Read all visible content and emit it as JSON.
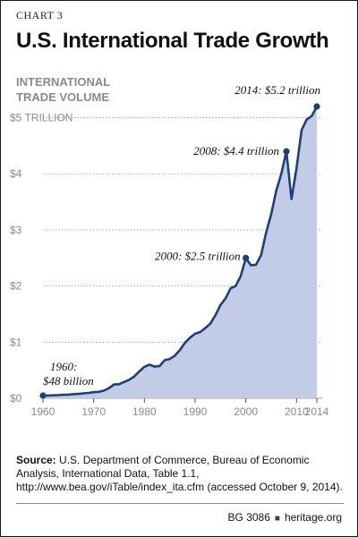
{
  "chart_label": "CHART 3",
  "chart_data": {
    "type": "area",
    "title": "U.S. International Trade Growth",
    "ylabel": "INTERNATIONAL\nTRADE VOLUME",
    "xlabel": "",
    "xlim": [
      1960,
      2014
    ],
    "ylim": [
      0,
      5.2
    ],
    "x_ticks": [
      "1960",
      "1970",
      "1980",
      "1990",
      "2000",
      "2010",
      "2014"
    ],
    "y_ticks": [
      "$0",
      "$1",
      "$2",
      "$3",
      "$4",
      "$5 TRILLION"
    ],
    "units": "trillions of US dollars",
    "series": [
      {
        "x": [
          1960,
          1961,
          1962,
          1963,
          1964,
          1965,
          1966,
          1967,
          1968,
          1969,
          1970,
          1971,
          1972,
          1973,
          1974,
          1975,
          1976,
          1977,
          1978,
          1979,
          1980,
          1981,
          1982,
          1983,
          1984,
          1985,
          1986,
          1987,
          1988,
          1989,
          1990,
          1991,
          1992,
          1993,
          1994,
          1995,
          1996,
          1997,
          1998,
          1999,
          2000,
          2001,
          2002,
          2003,
          2004,
          2005,
          2006,
          2007,
          2008,
          2009,
          2010,
          2011,
          2012,
          2013,
          2014
        ],
        "values": [
          0.048,
          0.05,
          0.053,
          0.056,
          0.062,
          0.066,
          0.074,
          0.078,
          0.087,
          0.095,
          0.108,
          0.115,
          0.135,
          0.18,
          0.245,
          0.25,
          0.29,
          0.33,
          0.39,
          0.48,
          0.56,
          0.6,
          0.565,
          0.575,
          0.68,
          0.7,
          0.76,
          0.86,
          0.99,
          1.08,
          1.15,
          1.18,
          1.25,
          1.33,
          1.48,
          1.66,
          1.78,
          1.96,
          2.0,
          2.18,
          2.5,
          2.37,
          2.38,
          2.55,
          2.95,
          3.28,
          3.7,
          4.0,
          4.4,
          3.55,
          4.1,
          4.78,
          4.97,
          5.03,
          5.2
        ]
      }
    ],
    "annotations": [
      {
        "year": 1960,
        "value": 0.048,
        "line1": "1960:",
        "line2": "$48 billion"
      },
      {
        "year": 2000,
        "value": 2.5,
        "line1": "2000: $2.5 trillion"
      },
      {
        "year": 2008,
        "value": 4.4,
        "line1": "2008: $4.4 trillion"
      },
      {
        "year": 2014,
        "value": 5.2,
        "line1": "2014: $5.2 trillion"
      }
    ],
    "colors": {
      "line": "#1f3f7a",
      "fill": "#c2cce6",
      "grid": "#9a9a9a"
    }
  },
  "source": {
    "label": "Source:",
    "text": "U.S. Department of Commerce, Bureau of Economic Analysis, International Data, Table 1.1, http://www.bea.gov/iTable/index_ita.cfm (accessed October 9, 2014)."
  },
  "footer": {
    "code": "BG 3086",
    "separator": "■",
    "site": "heritage.org"
  }
}
